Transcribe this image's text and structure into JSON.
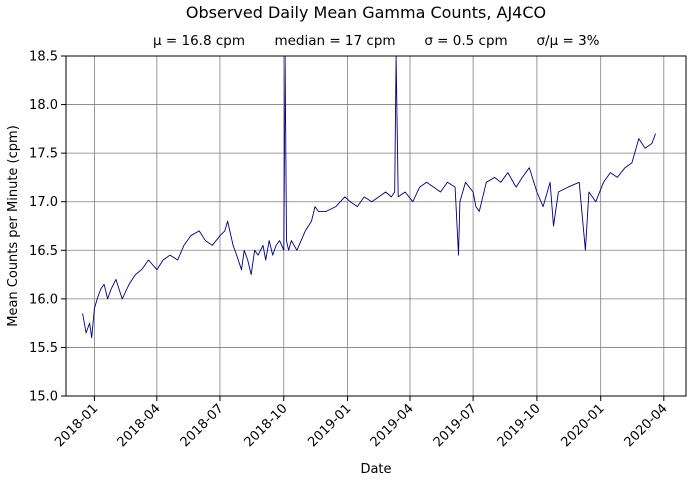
{
  "chart_data": {
    "type": "line",
    "title": "Observed Daily Mean Gamma Counts, AJ4CO",
    "subtitle": {
      "mean": "μ = 16.8 cpm",
      "median": "median = 17 cpm",
      "std": "σ = 0.5 cpm",
      "cv": "σ/μ = 3%"
    },
    "xlabel": "Date",
    "ylabel": "Mean Counts per Minute (cpm)",
    "xlim": [
      "2017-11-21",
      "2020-05-03"
    ],
    "ylim": [
      15.0,
      18.5
    ],
    "grid": true,
    "line_color": "#000080",
    "grid_color": "#808080",
    "x_ticks": [
      "2018-01",
      "2018-04",
      "2018-07",
      "2018-10",
      "2019-01",
      "2019-04",
      "2019-07",
      "2019-10",
      "2020-01",
      "2020-04"
    ],
    "y_ticks": [
      "15.0",
      "15.5",
      "16.0",
      "16.5",
      "17.0",
      "17.5",
      "18.0",
      "18.5"
    ],
    "series": [
      {
        "x": [
          "2017-12-15",
          "2017-12-20",
          "2017-12-25",
          "2017-12-28",
          "2018-01-01",
          "2018-01-05",
          "2018-01-10",
          "2018-01-15",
          "2018-01-20",
          "2018-01-25",
          "2018-02-01",
          "2018-02-10",
          "2018-02-20",
          "2018-03-01",
          "2018-03-10",
          "2018-03-20",
          "2018-04-01",
          "2018-04-10",
          "2018-04-20",
          "2018-05-01",
          "2018-05-10",
          "2018-05-20",
          "2018-06-01",
          "2018-06-10",
          "2018-06-20",
          "2018-07-01",
          "2018-07-08",
          "2018-07-12",
          "2018-07-20",
          "2018-07-25",
          "2018-08-01",
          "2018-08-05",
          "2018-08-10",
          "2018-08-15",
          "2018-08-20",
          "2018-08-25",
          "2018-09-01",
          "2018-09-05",
          "2018-09-10",
          "2018-09-15",
          "2018-09-20",
          "2018-09-25",
          "2018-10-01",
          "2018-10-03",
          "2018-10-05",
          "2018-10-08",
          "2018-10-12",
          "2018-10-20",
          "2018-11-01",
          "2018-11-10",
          "2018-11-15",
          "2018-11-20",
          "2018-12-01",
          "2018-12-15",
          "2018-12-28",
          "2019-01-05",
          "2019-01-15",
          "2019-01-25",
          "2019-02-05",
          "2019-02-15",
          "2019-02-25",
          "2019-03-05",
          "2019-03-10",
          "2019-03-12",
          "2019-03-15",
          "2019-03-25",
          "2019-04-05",
          "2019-04-15",
          "2019-04-25",
          "2019-05-05",
          "2019-05-15",
          "2019-05-25",
          "2019-06-05",
          "2019-06-10",
          "2019-06-12",
          "2019-06-20",
          "2019-07-01",
          "2019-07-05",
          "2019-07-10",
          "2019-07-20",
          "2019-08-01",
          "2019-08-10",
          "2019-08-20",
          "2019-09-01",
          "2019-09-10",
          "2019-09-20",
          "2019-10-01",
          "2019-10-10",
          "2019-10-20",
          "2019-10-25",
          "2019-11-01",
          "2019-11-15",
          "2019-12-01",
          "2019-12-10",
          "2019-12-15",
          "2019-12-25",
          "2020-01-05",
          "2020-01-15",
          "2020-01-25",
          "2020-02-05",
          "2020-02-15",
          "2020-02-25",
          "2020-03-05",
          "2020-03-15",
          "2020-03-20"
        ],
        "y": [
          15.85,
          15.65,
          15.75,
          15.6,
          15.9,
          16.0,
          16.1,
          16.15,
          16.0,
          16.1,
          16.2,
          16.0,
          16.15,
          16.25,
          16.3,
          16.4,
          16.3,
          16.4,
          16.45,
          16.4,
          16.55,
          16.65,
          16.7,
          16.6,
          16.55,
          16.65,
          16.7,
          16.8,
          16.55,
          16.45,
          16.3,
          16.5,
          16.4,
          16.25,
          16.5,
          16.45,
          16.55,
          16.4,
          16.6,
          16.45,
          16.55,
          16.6,
          16.5,
          18.5,
          16.6,
          16.5,
          16.6,
          16.5,
          16.7,
          16.8,
          16.95,
          16.9,
          16.9,
          16.95,
          17.05,
          17.0,
          16.95,
          17.05,
          17.0,
          17.05,
          17.1,
          17.05,
          17.1,
          18.5,
          17.05,
          17.1,
          17.0,
          17.15,
          17.2,
          17.15,
          17.1,
          17.2,
          17.15,
          16.45,
          17.0,
          17.2,
          17.1,
          16.95,
          16.9,
          17.2,
          17.25,
          17.2,
          17.3,
          17.15,
          17.25,
          17.35,
          17.1,
          16.95,
          17.2,
          16.75,
          17.1,
          17.15,
          17.2,
          16.5,
          17.1,
          17.0,
          17.2,
          17.3,
          17.25,
          17.35,
          17.4,
          17.65,
          17.55,
          17.6,
          17.7
        ]
      }
    ]
  }
}
